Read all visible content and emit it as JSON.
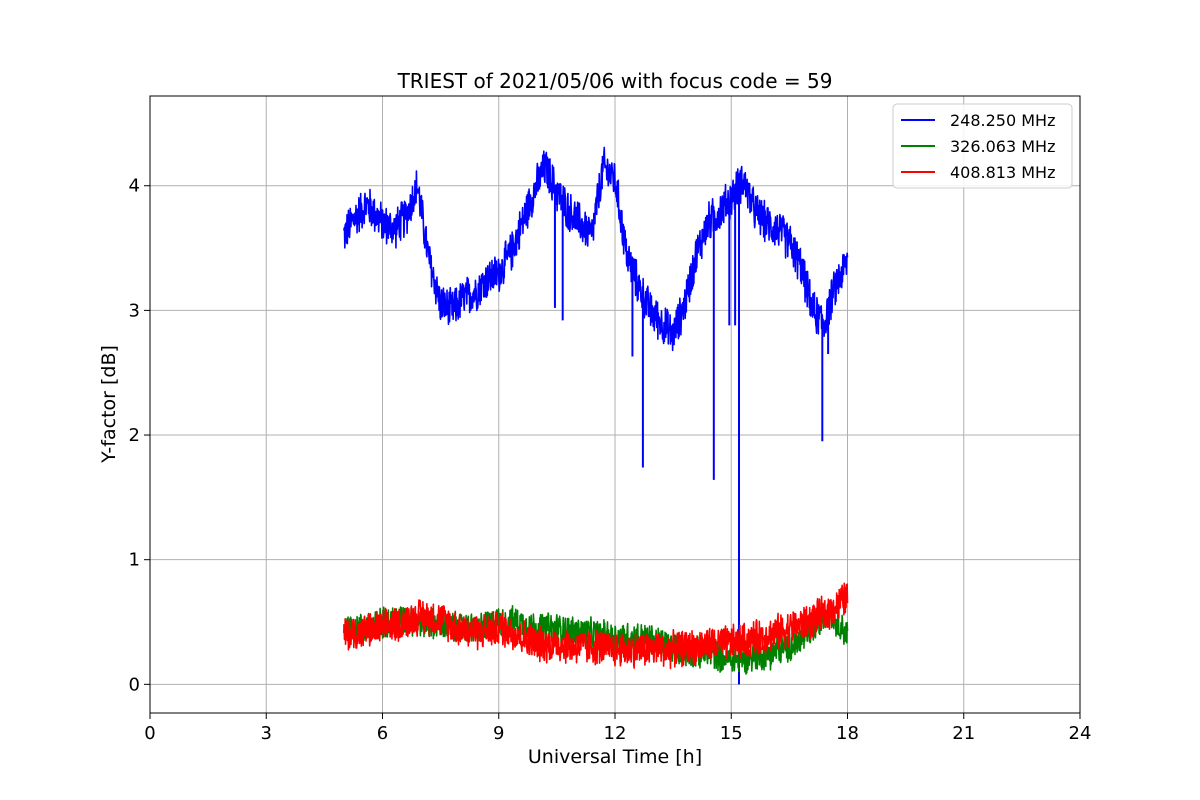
{
  "chart_data": {
    "type": "line",
    "title": "TRIEST of 2021/05/06 with focus code = 59",
    "xlabel": "Universal Time [h]",
    "ylabel": "Y-factor [dB]",
    "xlim": [
      0,
      24
    ],
    "ylim": [
      -0.23,
      4.72
    ],
    "x_ticks": [
      0,
      3,
      6,
      9,
      12,
      15,
      18,
      21,
      24
    ],
    "x_tick_labels": [
      "0",
      "3",
      "6",
      "9",
      "12",
      "15",
      "18",
      "21",
      "24"
    ],
    "y_ticks": [
      0,
      1,
      2,
      3,
      4
    ],
    "y_tick_labels": [
      "0",
      "1",
      "2",
      "3",
      "4"
    ],
    "grid": true,
    "legend_position": "top-right",
    "series": [
      {
        "name": "248.250 MHz",
        "color": "#0000ff",
        "noise": 0.18,
        "x": [
          5.0,
          5.3,
          5.6,
          6.0,
          6.3,
          6.6,
          6.9,
          7.2,
          7.5,
          7.8,
          8.1,
          8.4,
          8.7,
          9.0,
          9.3,
          9.6,
          9.9,
          10.2,
          10.5,
          10.8,
          11.1,
          11.4,
          11.7,
          12.0,
          12.3,
          12.6,
          12.9,
          13.2,
          13.5,
          13.8,
          14.1,
          14.4,
          14.7,
          15.0,
          15.3,
          15.6,
          15.9,
          16.2,
          16.5,
          16.8,
          17.1,
          17.4,
          17.7,
          18.0
        ],
        "y": [
          3.6,
          3.75,
          3.85,
          3.7,
          3.65,
          3.75,
          4.0,
          3.4,
          3.05,
          3.0,
          3.1,
          3.15,
          3.25,
          3.3,
          3.45,
          3.7,
          3.95,
          4.15,
          3.95,
          3.8,
          3.7,
          3.6,
          4.15,
          4.05,
          3.45,
          3.2,
          3.0,
          2.9,
          2.8,
          3.05,
          3.45,
          3.7,
          3.8,
          3.9,
          4.05,
          3.8,
          3.7,
          3.65,
          3.55,
          3.35,
          3.0,
          2.9,
          3.2,
          3.4
        ],
        "spikes": [
          {
            "x": 10.45,
            "y": 3.02
          },
          {
            "x": 10.65,
            "y": 2.92
          },
          {
            "x": 12.45,
            "y": 2.63
          },
          {
            "x": 12.72,
            "y": 1.74
          },
          {
            "x": 14.55,
            "y": 1.64
          },
          {
            "x": 14.95,
            "y": 2.88
          },
          {
            "x": 15.1,
            "y": 2.88
          },
          {
            "x": 15.2,
            "y": 0.0
          },
          {
            "x": 17.35,
            "y": 1.95
          },
          {
            "x": 17.5,
            "y": 2.65
          }
        ]
      },
      {
        "name": "326.063 MHz",
        "color": "#008000",
        "noise": 0.14,
        "x": [
          5.0,
          5.5,
          6.0,
          6.5,
          7.0,
          7.5,
          8.0,
          8.5,
          9.0,
          9.5,
          10.0,
          10.5,
          11.0,
          11.5,
          12.0,
          12.5,
          13.0,
          13.5,
          14.0,
          14.5,
          15.0,
          15.5,
          16.0,
          16.5,
          17.0,
          17.5,
          18.0
        ],
        "y": [
          0.45,
          0.45,
          0.5,
          0.52,
          0.5,
          0.48,
          0.45,
          0.45,
          0.5,
          0.5,
          0.45,
          0.45,
          0.42,
          0.4,
          0.38,
          0.38,
          0.35,
          0.3,
          0.25,
          0.25,
          0.2,
          0.22,
          0.25,
          0.3,
          0.4,
          0.6,
          0.4
        ]
      },
      {
        "name": "408.813 MHz",
        "color": "#ff0000",
        "noise": 0.16,
        "x": [
          5.0,
          5.5,
          6.0,
          6.5,
          7.0,
          7.5,
          8.0,
          8.5,
          9.0,
          9.5,
          10.0,
          10.5,
          11.0,
          11.5,
          12.0,
          12.5,
          13.0,
          13.5,
          14.0,
          14.5,
          15.0,
          15.5,
          16.0,
          16.5,
          17.0,
          17.5,
          18.0
        ],
        "y": [
          0.4,
          0.42,
          0.45,
          0.5,
          0.55,
          0.52,
          0.45,
          0.42,
          0.45,
          0.4,
          0.32,
          0.32,
          0.3,
          0.3,
          0.28,
          0.28,
          0.28,
          0.28,
          0.3,
          0.32,
          0.33,
          0.36,
          0.4,
          0.45,
          0.5,
          0.58,
          0.7
        ]
      }
    ]
  }
}
